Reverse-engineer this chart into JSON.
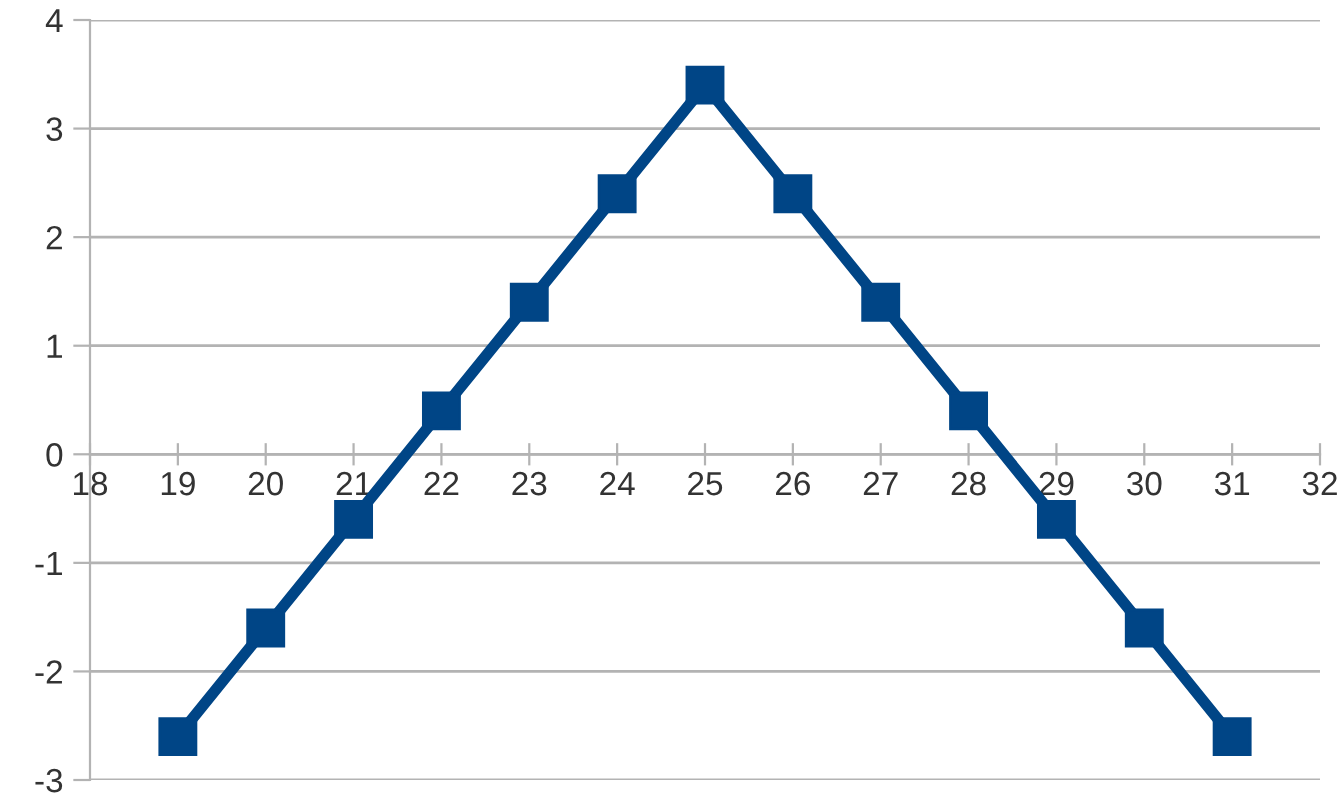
{
  "chart_data": {
    "type": "line",
    "x": [
      19,
      20,
      21,
      22,
      23,
      24,
      25,
      26,
      27,
      28,
      29,
      30,
      31
    ],
    "series": [
      {
        "color": "#004586",
        "values": [
          -2.6,
          -1.6,
          -0.6,
          0.4,
          1.4,
          2.4,
          3.4,
          2.4,
          1.4,
          0.4,
          -0.6,
          -1.6,
          -2.6
        ]
      }
    ],
    "xlim": [
      18,
      32
    ],
    "xticks": [
      18,
      19,
      20,
      21,
      22,
      23,
      24,
      25,
      26,
      27,
      28,
      29,
      30,
      31,
      32
    ],
    "ylim": [
      -3,
      4
    ],
    "yticks": [
      -3,
      -2,
      -1,
      0,
      1,
      2,
      3,
      4
    ],
    "grid": "y",
    "marker": "square",
    "line_style": "solid",
    "legend": false
  }
}
